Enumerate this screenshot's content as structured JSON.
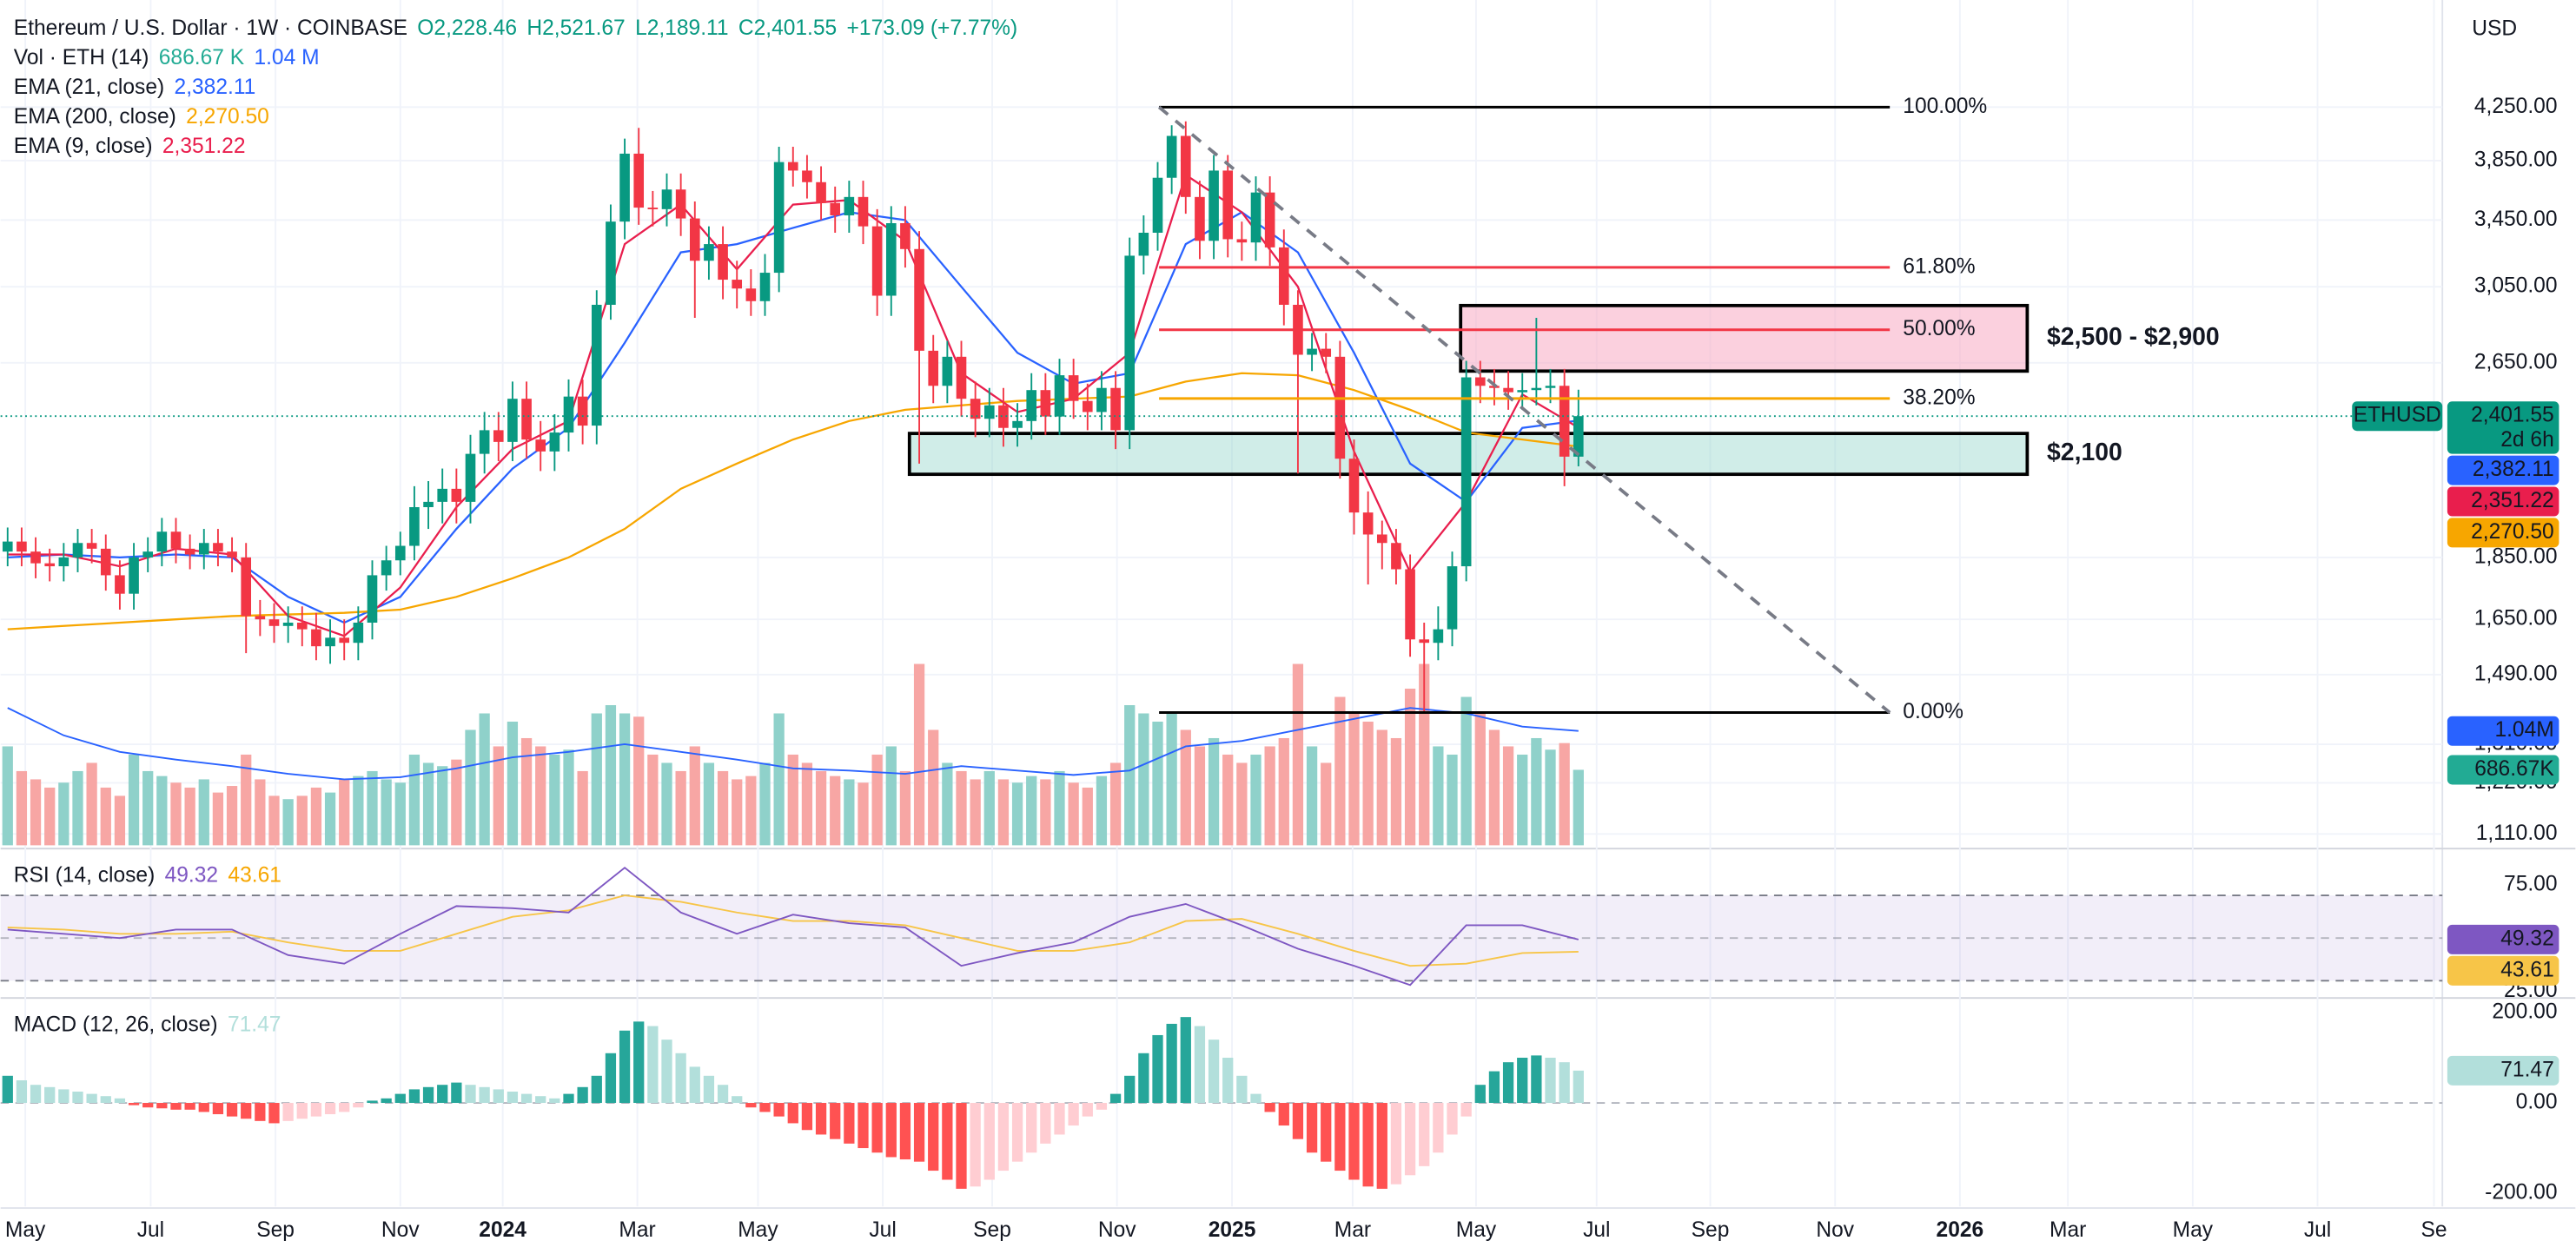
{
  "header": {
    "symbol": "Ethereum / U.S. Dollar · 1W · COINBASE",
    "ohlc": [
      "O2,228.46",
      "H2,521.67",
      "L2,189.11",
      "C2,401.55",
      "+173.09 (+7.77%)"
    ],
    "currency": "USD"
  },
  "chart_data": {
    "type": "candlestick",
    "log": true,
    "grid": true,
    "xlim": [
      -0.5,
      173.6
    ],
    "xticks": [
      {
        "value": 1.26,
        "label": "May"
      },
      {
        "value": 10.2,
        "label": "Jul"
      },
      {
        "value": 19.1,
        "label": "Sep"
      },
      {
        "value": 28.0,
        "label": "Nov"
      },
      {
        "value": 35.3,
        "label": "2024"
      },
      {
        "value": 44.9,
        "label": "Mar"
      },
      {
        "value": 53.5,
        "label": "May"
      },
      {
        "value": 62.4,
        "label": "Jul"
      },
      {
        "value": 70.2,
        "label": "Sep"
      },
      {
        "value": 79.1,
        "label": "Nov"
      },
      {
        "value": 87.3,
        "label": "2025"
      },
      {
        "value": 95.9,
        "label": "Mar"
      },
      {
        "value": 104.7,
        "label": "May"
      },
      {
        "value": 113.3,
        "label": "Jul"
      },
      {
        "value": 121.4,
        "label": "Sep"
      },
      {
        "value": 130.3,
        "label": "Nov"
      },
      {
        "value": 139.2,
        "label": "2026"
      },
      {
        "value": 146.9,
        "label": "Mar"
      },
      {
        "value": 155.8,
        "label": "May"
      },
      {
        "value": 164.7,
        "label": "Jul"
      },
      {
        "value": 173.0,
        "label": "Se"
      }
    ],
    "ylim": [
      1087,
      5180
    ],
    "yticks": [
      {
        "value": 4250,
        "label": "4,250.00"
      },
      {
        "value": 3850,
        "label": "3,850.00"
      },
      {
        "value": 3450,
        "label": "3,450.00"
      },
      {
        "value": 3050,
        "label": "3,050.00"
      },
      {
        "value": 2650,
        "label": "2,650.00"
      },
      {
        "value": 1850,
        "label": "1,850.00"
      },
      {
        "value": 1650,
        "label": "1,650.00"
      },
      {
        "value": 1490,
        "label": "1,490.00"
      },
      {
        "value": 1310,
        "label": "1,310.00"
      },
      {
        "value": 1220,
        "label": "1,220.00"
      },
      {
        "value": 1110,
        "label": "1,110.00"
      }
    ],
    "open": [
      1870,
      1905,
      1870,
      1830,
      1820,
      1850,
      1900,
      1880,
      1790,
      1730,
      1850,
      1870,
      1940,
      1880,
      1860,
      1900,
      1870,
      1850,
      1660,
      1650,
      1630,
      1640,
      1620,
      1570,
      1595,
      1580,
      1640,
      1790,
      1840,
      1890,
      2030,
      2050,
      2100,
      2050,
      2240,
      2340,
      2290,
      2480,
      2300,
      2250,
      2330,
      2490,
      2360,
      2950,
      3440,
      3900,
      3530,
      3520,
      3650,
      3460,
      3200,
      3300,
      3090,
      3040,
      2970,
      3130,
      3840,
      3780,
      3700,
      3560,
      3480,
      3600,
      3410,
      3000,
      3430,
      3270,
      2710,
      2540,
      2680,
      2480,
      2390,
      2450,
      2350,
      2380,
      2520,
      2400,
      2590,
      2470,
      2420,
      2530,
      2340,
      3230,
      3370,
      3730,
      4030,
      3600,
      3320,
      3780,
      3330,
      3310,
      3630,
      3280,
      2950,
      2690,
      2720,
      2680,
      2220,
      2010,
      1930,
      1900,
      1810,
      1590,
      1580,
      1620,
      1820,
      2580,
      2540,
      2530,
      2510,
      2520,
      2530,
      2540,
      2228.46
    ],
    "high": [
      1955,
      1955,
      1920,
      1880,
      1900,
      1950,
      1950,
      1930,
      1840,
      1900,
      1920,
      1990,
      1990,
      1930,
      1950,
      1950,
      1920,
      1900,
      1710,
      1700,
      1690,
      1690,
      1670,
      1650,
      1650,
      1690,
      1840,
      1890,
      1940,
      2110,
      2130,
      2180,
      2180,
      2320,
      2420,
      2420,
      2560,
      2560,
      2380,
      2410,
      2570,
      2570,
      3030,
      3550,
      4010,
      4090,
      3640,
      3760,
      3760,
      3570,
      3410,
      3410,
      3200,
      3150,
      3240,
      3950,
      3950,
      3890,
      3810,
      3670,
      3710,
      3710,
      3520,
      3540,
      3540,
      3380,
      2790,
      2760,
      2760,
      2560,
      2530,
      2530,
      2460,
      2600,
      2600,
      2670,
      2670,
      2550,
      2610,
      2610,
      3340,
      3480,
      3840,
      4110,
      4140,
      3710,
      3890,
      3890,
      3440,
      3740,
      3740,
      3390,
      3030,
      2800,
      2800,
      2760,
      2300,
      2090,
      1980,
      1950,
      1860,
      1640,
      1690,
      1870,
      2660,
      2660,
      2620,
      2610,
      2600,
      2880,
      2620,
      2620,
      2521.67
    ],
    "low": [
      1820,
      1820,
      1780,
      1770,
      1770,
      1800,
      1830,
      1740,
      1680,
      1680,
      1800,
      1820,
      1830,
      1810,
      1810,
      1820,
      1800,
      1550,
      1600,
      1580,
      1580,
      1570,
      1530,
      1520,
      1530,
      1530,
      1590,
      1740,
      1790,
      1840,
      1950,
      1970,
      1970,
      1970,
      2160,
      2210,
      2210,
      2220,
      2170,
      2170,
      2250,
      2280,
      2280,
      2870,
      3330,
      3420,
      3410,
      3410,
      3350,
      2880,
      3090,
      2980,
      2930,
      2890,
      2890,
      3020,
      3670,
      3590,
      3450,
      3370,
      3370,
      3300,
      2890,
      2890,
      3160,
      2200,
      2460,
      2460,
      2400,
      2310,
      2310,
      2270,
      2270,
      2300,
      2320,
      2320,
      2390,
      2340,
      2340,
      2260,
      2260,
      3120,
      3260,
      3620,
      3490,
      3210,
      3210,
      3220,
      3200,
      3200,
      3170,
      2840,
      2160,
      2610,
      2600,
      2140,
      1930,
      1760,
      1810,
      1760,
      1540,
      1390,
      1530,
      1570,
      1770,
      2460,
      2450,
      2430,
      2430,
      2450,
      2460,
      2110,
      2189.11
    ],
    "close": [
      1905,
      1870,
      1830,
      1820,
      1850,
      1900,
      1880,
      1790,
      1730,
      1850,
      1870,
      1940,
      1880,
      1860,
      1900,
      1870,
      1850,
      1660,
      1650,
      1630,
      1640,
      1620,
      1570,
      1595,
      1580,
      1640,
      1790,
      1840,
      1890,
      2030,
      2050,
      2100,
      2050,
      2240,
      2340,
      2290,
      2480,
      2300,
      2250,
      2330,
      2490,
      2360,
      2950,
      3440,
      3900,
      3530,
      3520,
      3650,
      3460,
      3200,
      3300,
      3090,
      3040,
      2970,
      3130,
      3840,
      3780,
      3700,
      3560,
      3480,
      3600,
      3410,
      3000,
      3430,
      3270,
      2710,
      2540,
      2680,
      2480,
      2390,
      2450,
      2350,
      2380,
      2520,
      2400,
      2590,
      2470,
      2420,
      2530,
      2340,
      3230,
      3370,
      3730,
      4030,
      3600,
      3320,
      3780,
      3330,
      3310,
      3630,
      3280,
      2950,
      2690,
      2720,
      2680,
      2220,
      2010,
      1930,
      1900,
      1810,
      1590,
      1580,
      1620,
      1820,
      2580,
      2540,
      2530,
      2510,
      2520,
      2530,
      2540,
      2228.46,
      2401.55
    ],
    "up_color": "#089981",
    "down_color": "#f23645",
    "last_price": {
      "value": 2401.55,
      "label": "2,401.55",
      "symbol": "ETHUSD",
      "countdown": "2d 6h",
      "color": "#089981"
    },
    "line_x": [
      0,
      4,
      8,
      12,
      16,
      20,
      24,
      28,
      32,
      36,
      40,
      44,
      48,
      52,
      56,
      60,
      64,
      68,
      72,
      76,
      80,
      84,
      88,
      92,
      96,
      100,
      104,
      108,
      112
    ],
    "series": [
      {
        "name": "EMA (21, close)",
        "color": "#2962ff",
        "last_label": "2,382.11",
        "values": [
          1850,
          1860,
          1850,
          1860,
          1850,
          1720,
          1640,
          1720,
          1950,
          2180,
          2350,
          2750,
          3250,
          3300,
          3400,
          3500,
          3450,
          3050,
          2700,
          2550,
          2600,
          3300,
          3500,
          3250,
          2700,
          2200,
          2050,
          2350,
          2382.11
        ]
      },
      {
        "name": "EMA (200, close)",
        "color": "#f7a600",
        "last_label": "2,270.50",
        "values": [
          1620,
          1630,
          1640,
          1650,
          1660,
          1665,
          1670,
          1680,
          1720,
          1780,
          1850,
          1950,
          2100,
          2200,
          2300,
          2380,
          2430,
          2450,
          2470,
          2480,
          2490,
          2560,
          2600,
          2590,
          2520,
          2430,
          2330,
          2300,
          2270.5
        ]
      },
      {
        "name": "EMA (9, close)",
        "color": "#e91e4d",
        "last_label": "2,351.22",
        "values": [
          1860,
          1860,
          1820,
          1880,
          1860,
          1660,
          1600,
          1750,
          2030,
          2260,
          2380,
          3300,
          3550,
          3150,
          3550,
          3580,
          3320,
          2600,
          2420,
          2480,
          2700,
          3750,
          3500,
          3050,
          2250,
          1800,
          2050,
          2500,
          2351.22
        ]
      }
    ],
    "volume": {
      "name": "Vol · ETH (14)",
      "ylim": [
        0,
        7690000
      ],
      "up_color": "#8fd1ca",
      "down_color": "#f7a6a4",
      "last_legend": "686.67 K",
      "last_tag": "686.67K",
      "ma_legend": "1.04 M",
      "ma_tag": "1.04M",
      "ma_color": "#2962ff",
      "values": [
        900000,
        675000,
        600000,
        525000,
        570000,
        675000,
        750000,
        525000,
        450000,
        825000,
        675000,
        630000,
        570000,
        525000,
        600000,
        480000,
        540000,
        825000,
        600000,
        450000,
        420000,
        450000,
        525000,
        480000,
        600000,
        630000,
        675000,
        600000,
        570000,
        825000,
        750000,
        720000,
        780000,
        1050000,
        1200000,
        900000,
        1125000,
        975000,
        900000,
        825000,
        870000,
        675000,
        1200000,
        1275000,
        1200000,
        1170000,
        825000,
        750000,
        675000,
        900000,
        750000,
        675000,
        600000,
        630000,
        750000,
        1200000,
        825000,
        750000,
        675000,
        630000,
        600000,
        570000,
        825000,
        900000,
        675000,
        1650000,
        1050000,
        750000,
        675000,
        600000,
        675000,
        600000,
        570000,
        630000,
        600000,
        675000,
        570000,
        525000,
        630000,
        750000,
        1275000,
        1200000,
        1125000,
        1200000,
        1050000,
        900000,
        975000,
        825000,
        750000,
        825000,
        900000,
        975000,
        1650000,
        900000,
        750000,
        1350000,
        1200000,
        1125000,
        1050000,
        975000,
        1425000,
        1650000,
        900000,
        825000,
        1350000,
        1200000,
        1050000,
        900000,
        825000,
        975000,
        870000,
        930000,
        686670
      ],
      "ma": [
        1250000,
        1000000,
        850000,
        780000,
        720000,
        650000,
        600000,
        620000,
        700000,
        800000,
        850000,
        920000,
        850000,
        780000,
        700000,
        680000,
        650000,
        720000,
        680000,
        640000,
        680000,
        900000,
        950000,
        1050000,
        1150000,
        1250000,
        1200000,
        1080000,
        1040000
      ]
    },
    "fib": {
      "x": [
        82.1,
        134.2
      ],
      "levels": [
        {
          "label": "100.00%",
          "price": 4250,
          "color": "#000000"
        },
        {
          "label": "61.80%",
          "price": 3161,
          "color": "#f23645"
        },
        {
          "label": "50.00%",
          "price": 2817,
          "color": "#f23645"
        },
        {
          "label": "38.20%",
          "price": 2481,
          "color": "#f7a600"
        },
        {
          "label": "0.00%",
          "price": 1389,
          "color": "#000000"
        }
      ]
    },
    "zones": [
      {
        "label": "$2,500 - $2,900",
        "top": 2946,
        "bottom": 2610,
        "x": [
          103.6,
          144.0
        ],
        "fill": "rgba(248,170,195,0.55)"
      },
      {
        "label": "$2,100",
        "top": 2326,
        "bottom": 2157,
        "x": [
          64.3,
          144.0
        ],
        "fill": "rgba(150,214,204,0.45)"
      }
    ],
    "trendline": {
      "x": [
        82.1,
        134.2
      ],
      "y": [
        4250,
        1389
      ]
    },
    "rsi": {
      "name": "RSI (14, close)",
      "color": "#7e57c2",
      "ma_color": "#f7c548",
      "last_label": "49.32",
      "ma_last_label": "43.61",
      "ylim": [
        22.7,
        91.2
      ],
      "yticks": [
        {
          "value": 75,
          "label": "75.00"
        },
        {
          "value": 25,
          "label": "25.00"
        }
      ],
      "bands": [
        70,
        50,
        30
      ],
      "values": [
        54,
        52,
        50,
        54,
        54,
        42,
        38,
        52,
        65,
        64,
        62,
        83,
        62,
        52,
        61,
        57,
        55,
        37,
        43,
        48,
        60,
        66,
        56,
        45,
        37,
        28,
        56,
        56,
        49.32
      ],
      "ma": [
        55,
        54,
        52,
        52,
        53,
        48,
        44,
        44,
        52,
        60,
        63,
        70,
        67,
        62,
        58,
        58,
        56,
        50,
        44,
        44,
        48,
        58,
        59,
        52,
        44,
        37,
        38,
        43,
        43.61
      ]
    },
    "macd": {
      "name": "MACD (12, 26, close)",
      "last_label": "71.47",
      "ylim": [
        -229,
        225
      ],
      "yticks": [
        {
          "value": 200,
          "label": "200.00"
        },
        {
          "value": 0,
          "label": "0.00"
        },
        {
          "value": -200,
          "label": "-200.00"
        }
      ],
      "colors": [
        "#26a69a",
        "#b2dfdb",
        "#ff5252",
        "#ffcdd2"
      ],
      "values": [
        60,
        50,
        40,
        35,
        30,
        25,
        20,
        15,
        10,
        -5,
        -10,
        -12,
        -15,
        -15,
        -20,
        -25,
        -30,
        -35,
        -40,
        -45,
        -40,
        -35,
        -30,
        -25,
        -20,
        -10,
        5,
        10,
        20,
        30,
        35,
        40,
        45,
        40,
        35,
        30,
        25,
        20,
        15,
        10,
        20,
        35,
        60,
        110,
        160,
        180,
        170,
        140,
        110,
        80,
        60,
        40,
        15,
        -10,
        -20,
        -30,
        -45,
        -60,
        -70,
        -80,
        -90,
        -100,
        -110,
        -120,
        -125,
        -130,
        -150,
        -170,
        -190,
        -185,
        -170,
        -150,
        -130,
        -110,
        -90,
        -70,
        -50,
        -30,
        -15,
        20,
        60,
        110,
        150,
        175,
        190,
        170,
        140,
        100,
        60,
        20,
        -20,
        -50,
        -80,
        -110,
        -130,
        -150,
        -170,
        -185,
        -190,
        -180,
        -160,
        -140,
        -110,
        -70,
        -30,
        40,
        70,
        90,
        100,
        105,
        100,
        90,
        71.47
      ]
    }
  }
}
